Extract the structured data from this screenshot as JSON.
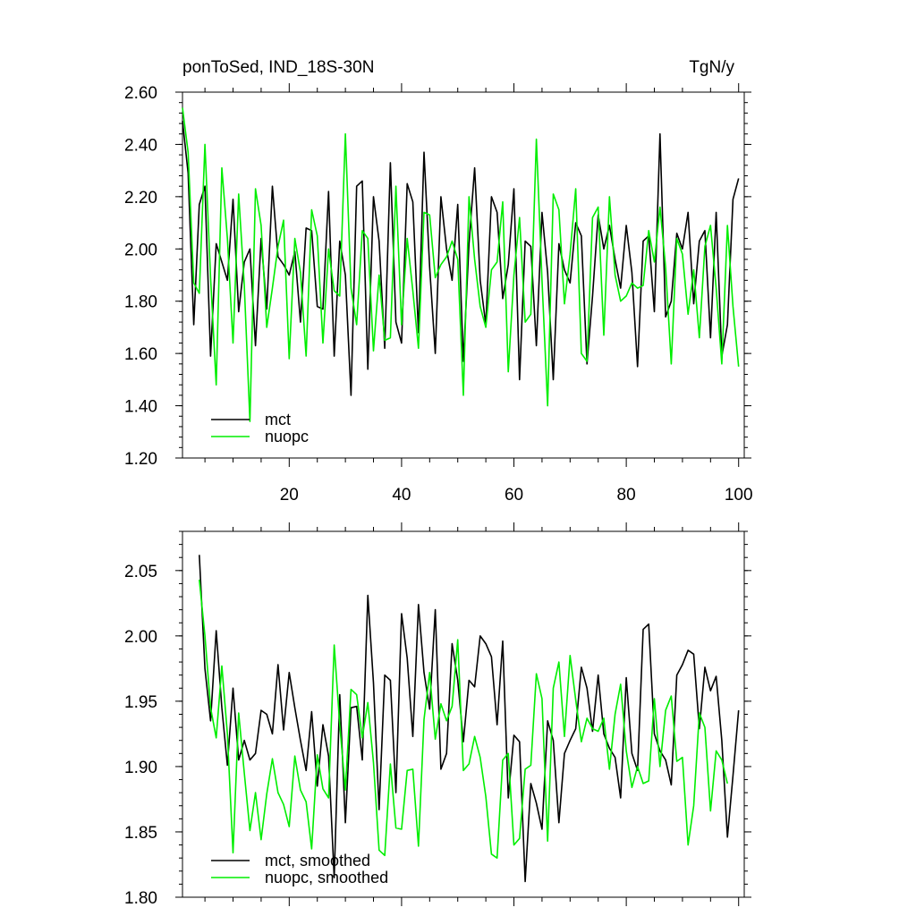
{
  "title_left": "ponToSed, IND_18S-30N",
  "title_right": "TgN/y",
  "colors": {
    "mct": "#000000",
    "nuopc": "#00ee00"
  },
  "chart_data": [
    {
      "type": "line",
      "xlim": [
        1,
        101
      ],
      "ylim": [
        1.2,
        2.6
      ],
      "x_ticks": [
        20,
        40,
        60,
        80,
        100
      ],
      "y_ticks": [
        "1.20",
        "1.40",
        "1.60",
        "1.80",
        "2.00",
        "2.20",
        "2.40",
        "2.60"
      ],
      "x_tick_labels_shown": true,
      "x_start": 1,
      "legend_position": "bottom-left",
      "series": [
        {
          "name": "mct",
          "color": "#000000",
          "values": [
            2.49,
            2.29,
            1.71,
            2.17,
            2.24,
            1.59,
            2.02,
            1.95,
            1.88,
            2.19,
            1.76,
            1.95,
            2.0,
            1.63,
            2.04,
            1.77,
            2.24,
            1.97,
            1.94,
            1.9,
            1.99,
            1.72,
            2.08,
            2.07,
            1.78,
            1.77,
            2.22,
            1.59,
            2.03,
            1.9,
            1.44,
            2.24,
            2.26,
            1.54,
            2.2,
            2.03,
            1.62,
            2.33,
            1.72,
            1.64,
            2.25,
            2.18,
            1.68,
            2.37,
            1.93,
            1.6,
            2.2,
            2.0,
            1.88,
            2.17,
            1.57,
            2.02,
            2.31,
            1.88,
            1.71,
            2.2,
            2.14,
            1.81,
            1.94,
            2.23,
            1.5,
            2.03,
            2.01,
            1.63,
            2.14,
            1.91,
            1.5,
            2.02,
            1.92,
            1.87,
            2.1,
            2.05,
            1.56,
            1.82,
            2.13,
            2.0,
            2.09,
            1.96,
            1.85,
            2.09,
            1.91,
            1.55,
            2.03,
            2.05,
            1.76,
            2.44,
            1.74,
            1.8,
            2.06,
            2.0,
            2.14,
            1.79,
            2.03,
            2.07,
            1.66,
            2.14,
            1.59,
            1.71,
            2.19,
            2.27
          ]
        },
        {
          "name": "nuopc",
          "color": "#00ee00",
          "values": [
            2.54,
            2.37,
            1.87,
            1.83,
            2.4,
            1.89,
            1.48,
            2.31,
            2.04,
            1.64,
            2.21,
            1.86,
            1.34,
            2.23,
            2.09,
            1.7,
            1.85,
            2.01,
            2.11,
            1.58,
            2.04,
            1.91,
            1.59,
            2.15,
            2.05,
            1.64,
            2.0,
            1.84,
            1.82,
            2.44,
            1.85,
            1.71,
            2.07,
            2.04,
            1.61,
            1.9,
            1.65,
            1.66,
            2.24,
            1.71,
            2.04,
            1.84,
            1.62,
            2.14,
            2.13,
            1.89,
            1.94,
            1.97,
            2.03,
            1.96,
            1.44,
            2.2,
            1.96,
            1.78,
            1.7,
            1.92,
            1.95,
            2.18,
            1.53,
            1.9,
            2.12,
            1.72,
            1.75,
            2.42,
            1.88,
            1.4,
            2.21,
            2.15,
            1.79,
            1.98,
            2.23,
            1.6,
            1.57,
            2.12,
            2.16,
            1.67,
            2.2,
            1.9,
            1.8,
            1.82,
            1.87,
            1.85,
            1.86,
            2.07,
            1.95,
            2.16,
            1.93,
            1.56,
            2.04,
            1.98,
            1.75,
            1.92,
            1.66,
            2.01,
            2.09,
            1.85,
            1.56,
            2.09,
            1.78,
            1.55
          ]
        }
      ]
    },
    {
      "type": "line",
      "xlim": [
        1,
        101
      ],
      "ylim": [
        1.8,
        2.08
      ],
      "x_ticks": [
        20,
        40,
        60,
        80,
        100
      ],
      "y_ticks": [
        "1.80",
        "1.85",
        "1.90",
        "1.95",
        "2.00",
        "2.05"
      ],
      "x_tick_labels_shown": false,
      "x_start": 4,
      "legend_position": "bottom-left",
      "series": [
        {
          "name": "mct, smoothed",
          "color": "#000000",
          "values": [
            2.062,
            1.975,
            1.935,
            2.004,
            1.945,
            1.901,
            1.96,
            1.905,
            1.92,
            1.905,
            1.91,
            1.943,
            1.94,
            1.925,
            1.978,
            1.928,
            1.972,
            1.945,
            1.92,
            1.897,
            1.942,
            1.885,
            1.932,
            1.908,
            1.815,
            1.955,
            1.857,
            1.945,
            1.946,
            1.905,
            2.031,
            1.964,
            1.867,
            1.97,
            1.966,
            1.88,
            2.017,
            1.983,
            1.923,
            2.024,
            1.972,
            1.944,
            2.02,
            1.898,
            1.91,
            1.994,
            1.966,
            1.919,
            1.966,
            1.961,
            2.0,
            1.994,
            1.984,
            1.932,
            1.996,
            1.876,
            1.924,
            1.919,
            1.812,
            1.887,
            1.872,
            1.852,
            1.935,
            1.92,
            1.857,
            1.91,
            1.92,
            1.929,
            1.976,
            1.96,
            1.927,
            1.97,
            1.925,
            1.914,
            1.907,
            1.876,
            1.968,
            1.91,
            1.897,
            2.005,
            2.009,
            1.925,
            1.912,
            1.905,
            1.886,
            1.97,
            1.978,
            1.989,
            1.986,
            1.929,
            1.976,
            1.958,
            1.969,
            1.92,
            1.846,
            1.893,
            1.943
          ]
        },
        {
          "name": "nuopc, smoothed",
          "color": "#00ee00",
          "values": [
            2.043,
            2.0,
            1.945,
            1.922,
            1.977,
            1.925,
            1.834,
            1.941,
            1.895,
            1.851,
            1.88,
            1.844,
            1.879,
            1.906,
            1.88,
            1.871,
            1.854,
            1.908,
            1.882,
            1.873,
            1.837,
            1.909,
            1.883,
            1.876,
            1.993,
            1.932,
            1.882,
            1.959,
            1.955,
            1.922,
            1.949,
            1.903,
            1.836,
            1.832,
            1.902,
            1.853,
            1.852,
            1.897,
            1.898,
            1.839,
            1.936,
            1.972,
            1.921,
            1.948,
            1.935,
            1.946,
            1.997,
            1.897,
            1.902,
            1.923,
            1.907,
            1.877,
            1.833,
            1.83,
            1.905,
            1.91,
            1.84,
            1.845,
            1.898,
            1.901,
            1.971,
            1.952,
            1.843,
            1.96,
            1.98,
            1.923,
            1.985,
            1.951,
            1.919,
            1.937,
            1.929,
            1.927,
            1.937,
            1.898,
            1.94,
            1.963,
            1.912,
            1.884,
            1.9,
            1.887,
            1.889,
            1.952,
            1.9,
            1.943,
            1.954,
            1.904,
            1.907,
            1.84,
            1.87,
            1.941,
            1.93,
            1.866,
            1.912,
            1.905,
            1.887
          ]
        }
      ]
    }
  ]
}
